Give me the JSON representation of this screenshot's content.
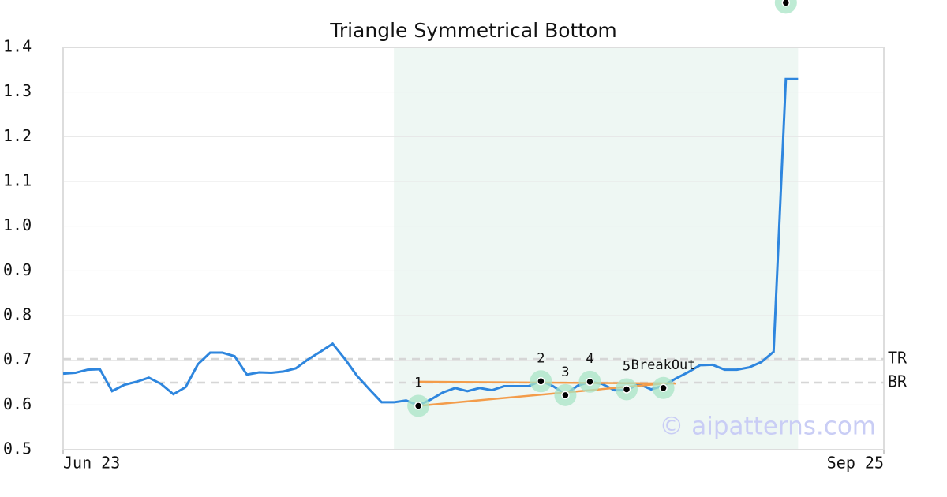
{
  "chart_data": {
    "type": "line",
    "title": "Triangle Symmetrical Bottom",
    "x": [
      0,
      1,
      2,
      3,
      4,
      5,
      6,
      7,
      8,
      9,
      10,
      11,
      12,
      13,
      14,
      15,
      16,
      17,
      18,
      19,
      20,
      21,
      22,
      23,
      24,
      25,
      26,
      27,
      28,
      29,
      30,
      31,
      32,
      33,
      34,
      35,
      36,
      37,
      38,
      39,
      40,
      41,
      42,
      43,
      44,
      45,
      46,
      47,
      48,
      49,
      50,
      51,
      52,
      53,
      54,
      55,
      56,
      57,
      58,
      59,
      60
    ],
    "values": [
      0.67,
      0.672,
      0.679,
      0.68,
      0.631,
      0.645,
      0.652,
      0.661,
      0.647,
      0.624,
      0.64,
      0.691,
      0.717,
      0.717,
      0.709,
      0.668,
      0.673,
      0.672,
      0.675,
      0.682,
      0.702,
      0.719,
      0.737,
      0.703,
      0.665,
      0.635,
      0.606,
      0.606,
      0.61,
      0.599,
      0.612,
      0.628,
      0.638,
      0.631,
      0.638,
      0.633,
      0.642,
      0.642,
      0.642,
      0.654,
      0.642,
      0.624,
      0.643,
      0.652,
      0.647,
      0.633,
      0.633,
      0.647,
      0.635,
      0.643,
      0.659,
      0.673,
      0.689,
      0.69,
      0.679,
      0.679,
      0.684,
      0.696,
      0.719,
      1.329,
      1.329
    ],
    "color": "#2e86de",
    "xlim": [
      0,
      67
    ],
    "xticks": [
      {
        "value": 0,
        "label": "Jun 23"
      },
      {
        "value": 67,
        "label": "Sep 25"
      }
    ],
    "ylim": [
      0.5,
      1.4
    ],
    "yticks": [
      0.5,
      0.6,
      0.7,
      0.8,
      0.9,
      {
        "value": 1.0,
        "label": "1.0"
      },
      1.1,
      1.2,
      1.3,
      1.4
    ],
    "grid": true,
    "shade_x": [
      27,
      60
    ],
    "shade_color": "#eef7f3",
    "levels": [
      {
        "label": "TR",
        "value": 0.703
      },
      {
        "label": "BR",
        "value": 0.65
      }
    ],
    "trend_color": "#f39c4a",
    "trend_lines": [
      {
        "x": [
          29,
          50
        ],
        "y": [
          0.652,
          0.648
        ]
      },
      {
        "x": [
          29,
          49
        ],
        "y": [
          0.598,
          0.648
        ]
      }
    ],
    "points": [
      {
        "label": "1",
        "x": 29,
        "y": 0.598
      },
      {
        "label": "2",
        "x": 39,
        "y": 0.653
      },
      {
        "label": "3",
        "x": 41,
        "y": 0.622
      },
      {
        "label": "4",
        "x": 43,
        "y": 0.652
      },
      {
        "label": "5",
        "x": 46,
        "y": 0.635
      },
      {
        "label": "BreakOut",
        "x": 49,
        "y": 0.638
      },
      {
        "label": null,
        "x": 59,
        "y": 1.5
      }
    ],
    "watermark": "© aipatterns.com"
  }
}
